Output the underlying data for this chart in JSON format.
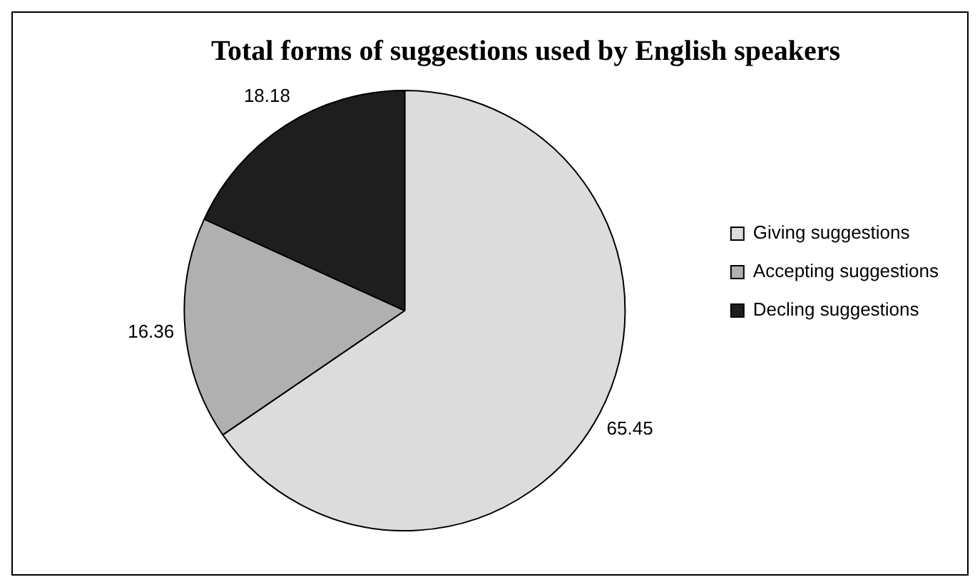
{
  "chart_data": {
    "type": "pie",
    "title": "Total forms of suggestions used by English speakers",
    "categories": [
      "Giving suggestions",
      "Accepting suggestions",
      "Decling suggestions"
    ],
    "values": [
      65.45,
      16.36,
      18.18
    ],
    "colors": [
      "#dcdcdc",
      "#b0b0b0",
      "#1e1e1e"
    ],
    "data_labels": true,
    "legend": "right"
  }
}
